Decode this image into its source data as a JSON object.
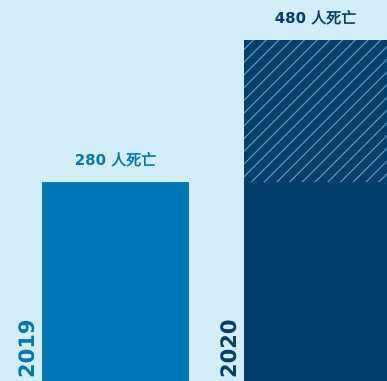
{
  "chart_data": {
    "type": "bar",
    "categories": [
      "2019",
      "2020"
    ],
    "values": [
      280,
      480
    ],
    "data_labels": [
      "280 人死亡",
      "480 人死亡"
    ],
    "hatched_from": [
      null,
      280
    ],
    "ylim": [
      0,
      480
    ],
    "title": "",
    "xlabel": "",
    "ylabel": "",
    "grid": false,
    "legend": "none"
  },
  "colors": {
    "background": "#d4eef9",
    "bar_2019": "#0077b3",
    "bar_2020": "#023f6a",
    "hatch_line": "#6fa9d1",
    "label_2019": "#0077b3",
    "label_2020": "#023f6a"
  }
}
